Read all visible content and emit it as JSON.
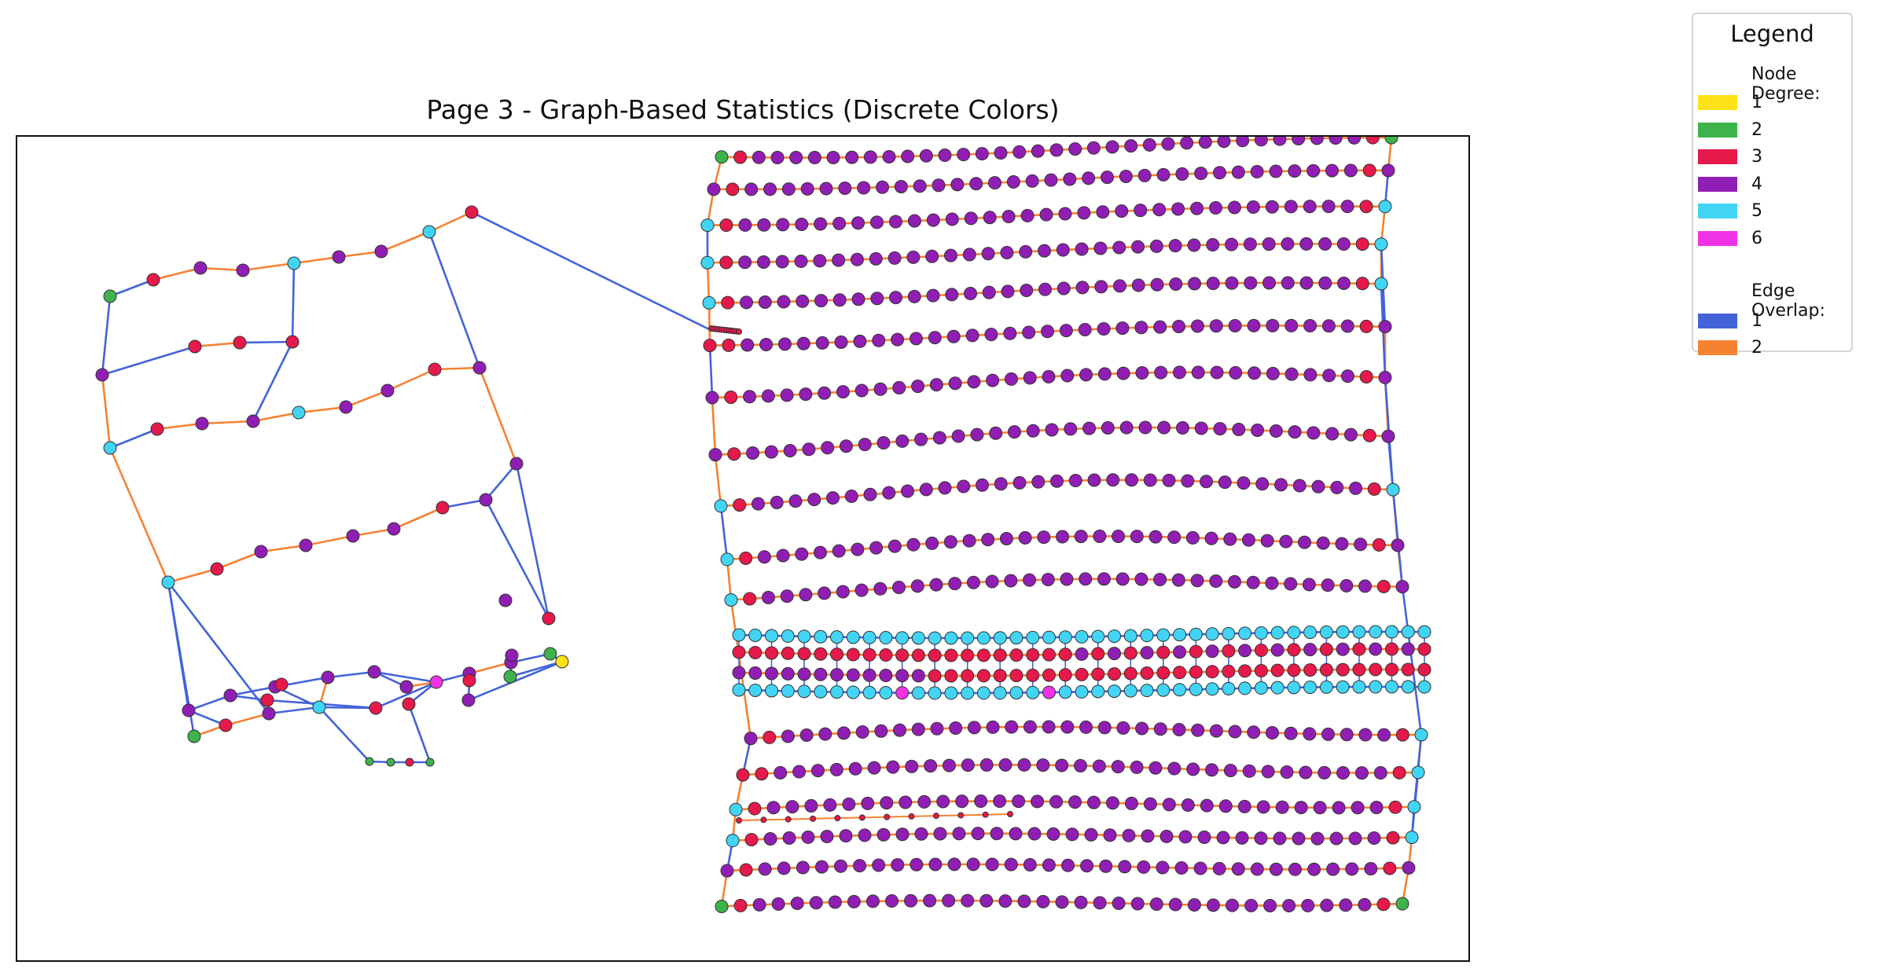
{
  "title": "Page 3 - Graph-Based Statistics (Discrete Colors)",
  "legend": {
    "title": "Legend",
    "degree_heading": "Node Degree:",
    "degrees": [
      {
        "label": "1",
        "color": "#ffe119"
      },
      {
        "label": "2",
        "color": "#3cb44b"
      },
      {
        "label": "3",
        "color": "#e6194b"
      },
      {
        "label": "4",
        "color": "#911eb4"
      },
      {
        "label": "5",
        "color": "#42d4f4"
      },
      {
        "label": "6",
        "color": "#f032e6"
      }
    ],
    "overlap_heading": "Edge Overlap:",
    "overlaps": [
      {
        "label": "1",
        "color": "#4363d8"
      },
      {
        "label": "2",
        "color": "#f58231"
      }
    ]
  }
}
